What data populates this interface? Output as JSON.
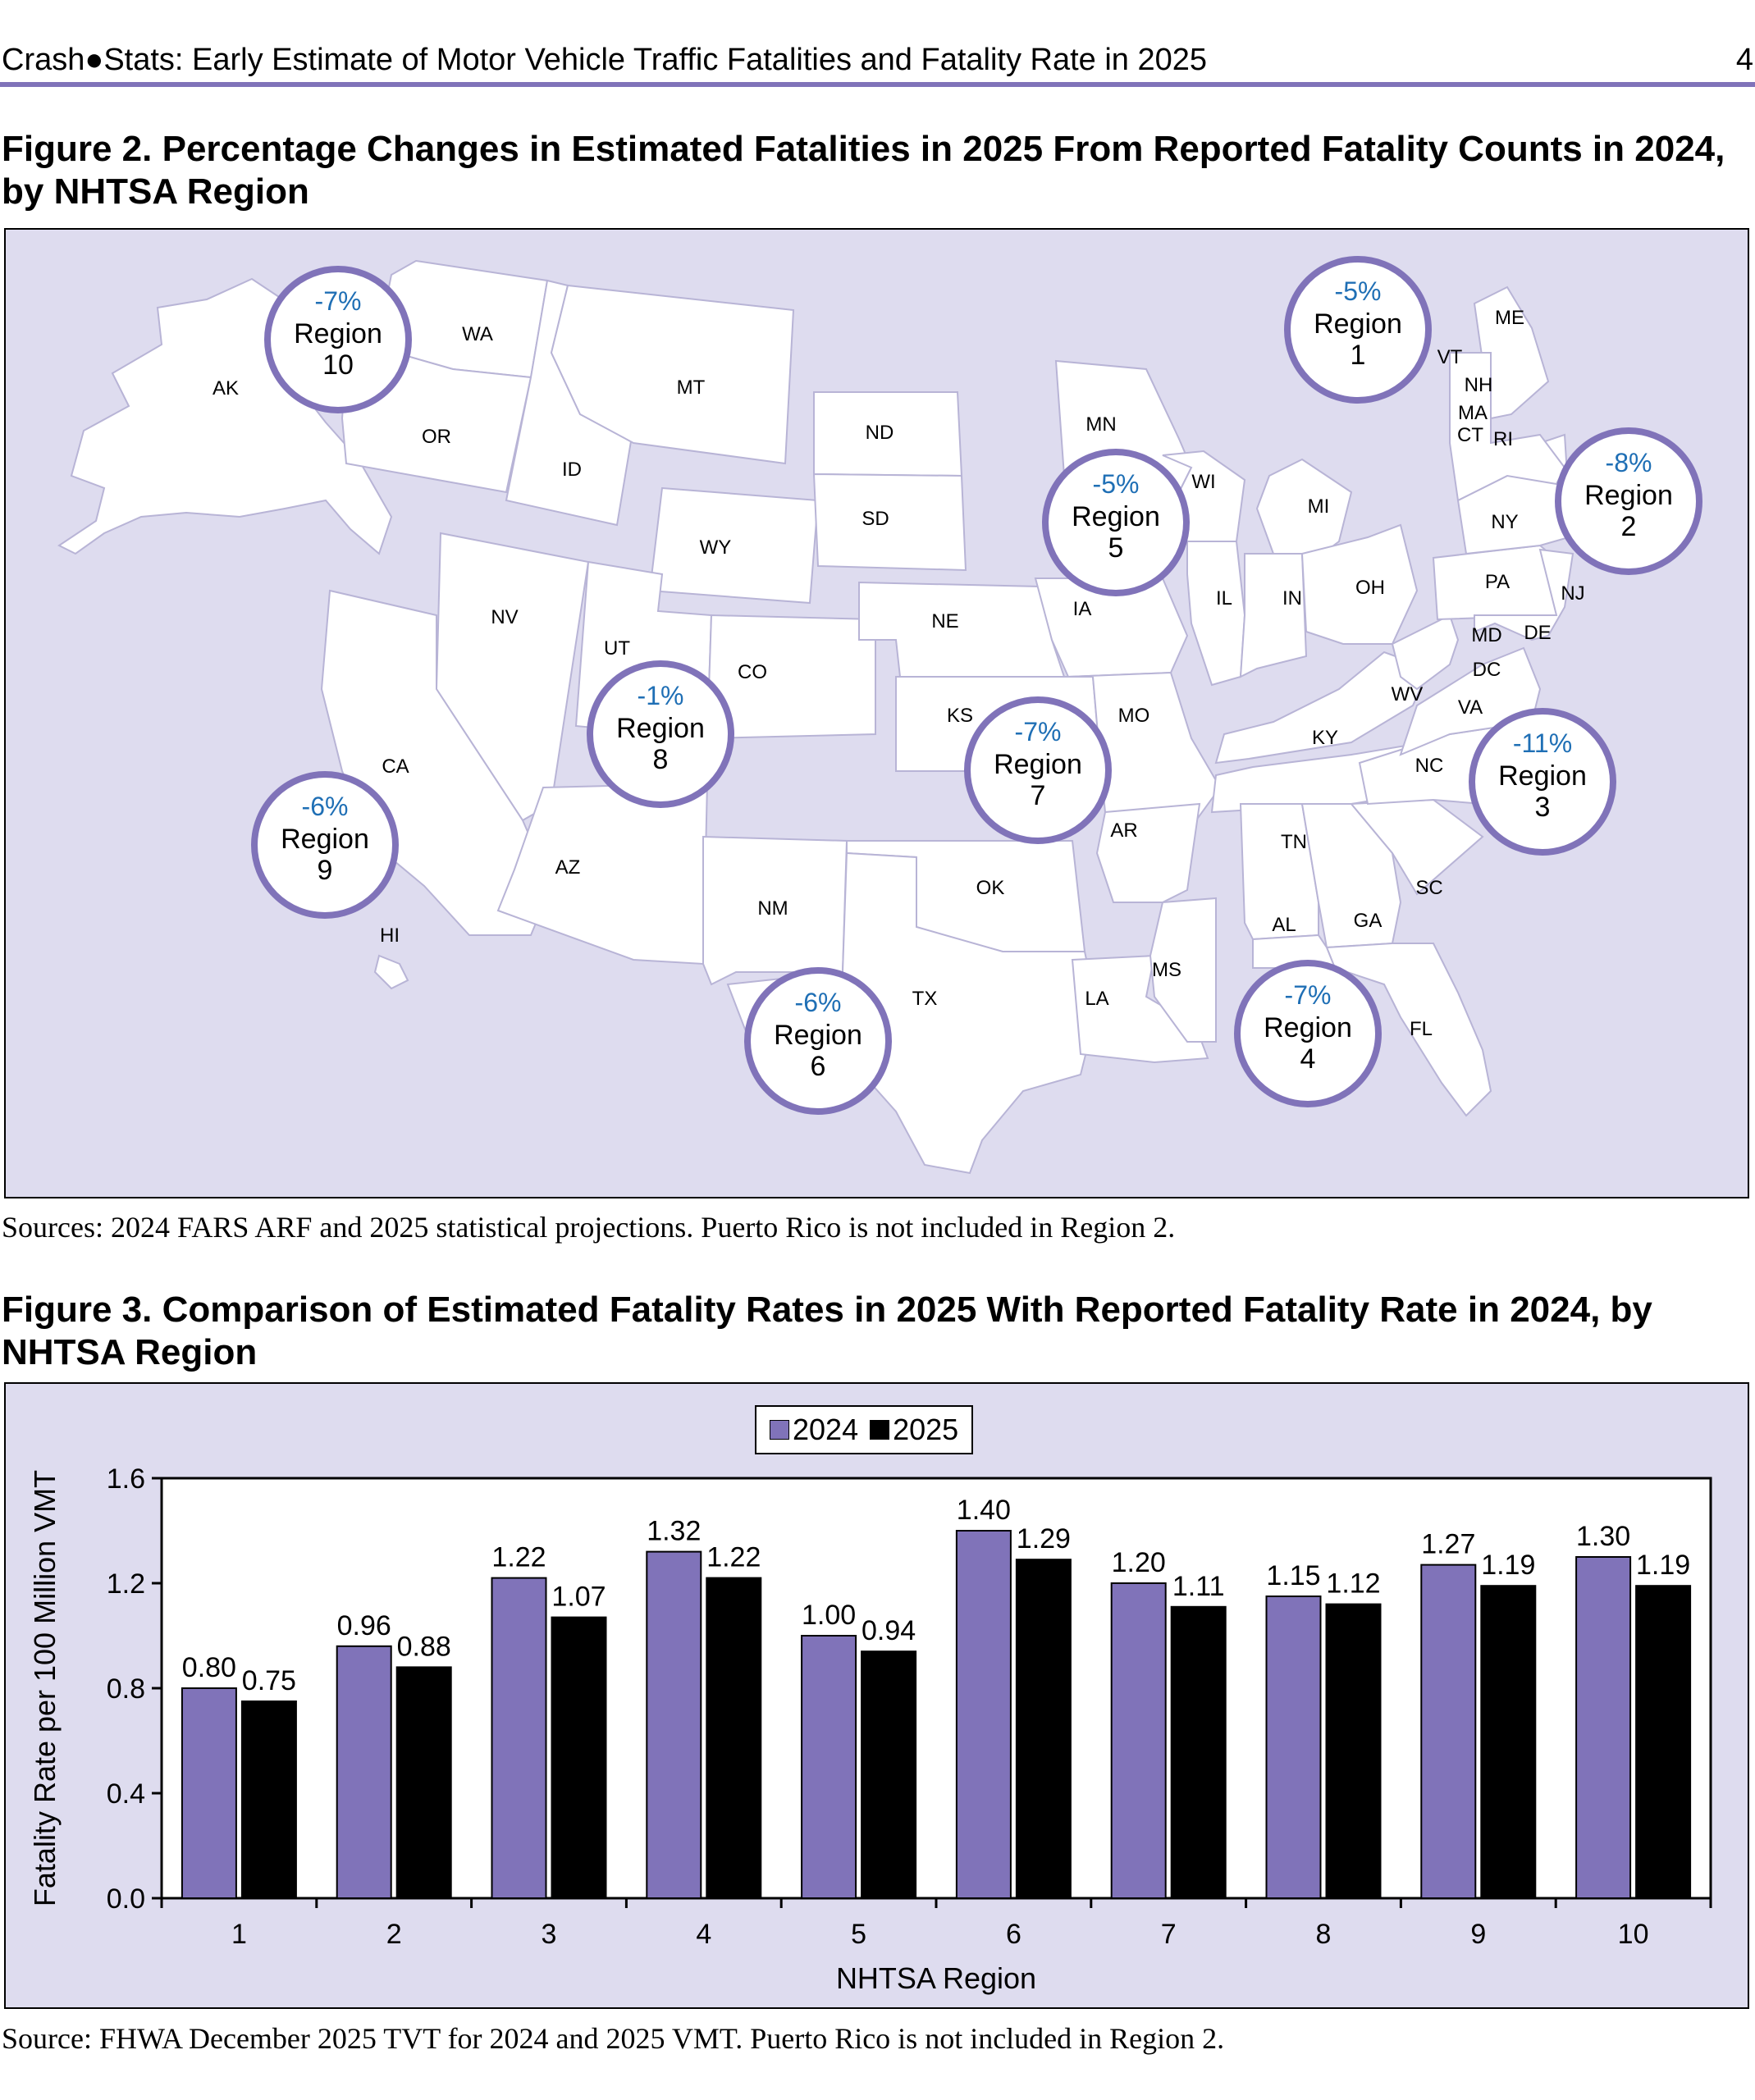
{
  "header": {
    "title": "Crash●Stats: Early Estimate of Motor Vehicle Traffic Fatalities and Fatality Rate in 2025",
    "page_number": "4"
  },
  "figure2": {
    "title": "Figure 2. Percentage Changes in Estimated Fatalities in 2025 From Reported Fatality Counts in 2024, by NHTSA Region",
    "source": "Sources: 2024 FARS ARF and 2025 statistical projections. Puerto Rico is not included in Region 2.",
    "state_labels": [
      "AK",
      "WA",
      "MT",
      "OR",
      "ID",
      "ND",
      "MN",
      "SD",
      "WY",
      "NV",
      "UT",
      "CO",
      "NE",
      "IA",
      "KS",
      "MO",
      "CA",
      "AZ",
      "NM",
      "OK",
      "TX",
      "AR",
      "LA",
      "MS",
      "HI",
      "WI",
      "MI",
      "IL",
      "IN",
      "OH",
      "KY",
      "TN",
      "AL",
      "GA",
      "SC",
      "NC",
      "VA",
      "WV",
      "PA",
      "NY",
      "ME",
      "VT",
      "NH",
      "MA",
      "CT",
      "RI",
      "NJ",
      "DE",
      "MD",
      "DC",
      "FL"
    ],
    "regions": [
      {
        "pct": "-5%",
        "label": "Region",
        "number": "1"
      },
      {
        "pct": "-8%",
        "label": "Region",
        "number": "2"
      },
      {
        "pct": "-11%",
        "label": "Region",
        "number": "3"
      },
      {
        "pct": "-7%",
        "label": "Region",
        "number": "4"
      },
      {
        "pct": "-5%",
        "label": "Region",
        "number": "5"
      },
      {
        "pct": "-6%",
        "label": "Region",
        "number": "6"
      },
      {
        "pct": "-7%",
        "label": "Region",
        "number": "7"
      },
      {
        "pct": "-1%",
        "label": "Region",
        "number": "8"
      },
      {
        "pct": "-6%",
        "label": "Region",
        "number": "9"
      },
      {
        "pct": "-7%",
        "label": "Region",
        "number": "10"
      }
    ],
    "colors": {
      "panel": "#dedcef",
      "state": "#ffffff",
      "circle_ring": "#8073b9",
      "pct_text": "#1f6fb5"
    }
  },
  "figure3": {
    "title": "Figure 3. Comparison of Estimated Fatality Rates in 2025 With Reported Fatality Rate in 2024, by NHTSA Region",
    "source": "Source: FHWA December 2025 TVT for 2024 and 2025 VMT. Puerto Rico is not included in Region 2."
  },
  "chart_data": {
    "type": "bar",
    "categories": [
      "1",
      "2",
      "3",
      "4",
      "5",
      "6",
      "7",
      "8",
      "9",
      "10"
    ],
    "series": [
      {
        "name": "2024",
        "values": [
          0.8,
          0.96,
          1.22,
          1.32,
          1.0,
          1.4,
          1.2,
          1.15,
          1.27,
          1.3
        ],
        "color": "#8073b9"
      },
      {
        "name": "2025",
        "values": [
          0.75,
          0.88,
          1.07,
          1.22,
          0.94,
          1.29,
          1.11,
          1.12,
          1.19,
          1.19
        ],
        "color": "#000000"
      }
    ],
    "value_labels": {
      "2024": [
        "0.80",
        "0.96",
        "1.22",
        "1.32",
        "1.00",
        "1.40",
        "1.20",
        "1.15",
        "1.27",
        "1.30"
      ],
      "2025": [
        "0.75",
        "0.88",
        "1.07",
        "1.22",
        "0.94",
        "1.29",
        "1.11",
        "1.12",
        "1.19",
        "1.19"
      ]
    },
    "xlabel": "NHTSA Region",
    "ylabel": "Fatality Rate per 100 Million VMT",
    "ylim": [
      0,
      1.6
    ],
    "yticks": [
      "0.0",
      "0.4",
      "0.8",
      "1.2",
      "1.6"
    ],
    "ytick_values": [
      0,
      0.4,
      0.8,
      1.2,
      1.6
    ],
    "legend": "top-center",
    "grid": false
  }
}
